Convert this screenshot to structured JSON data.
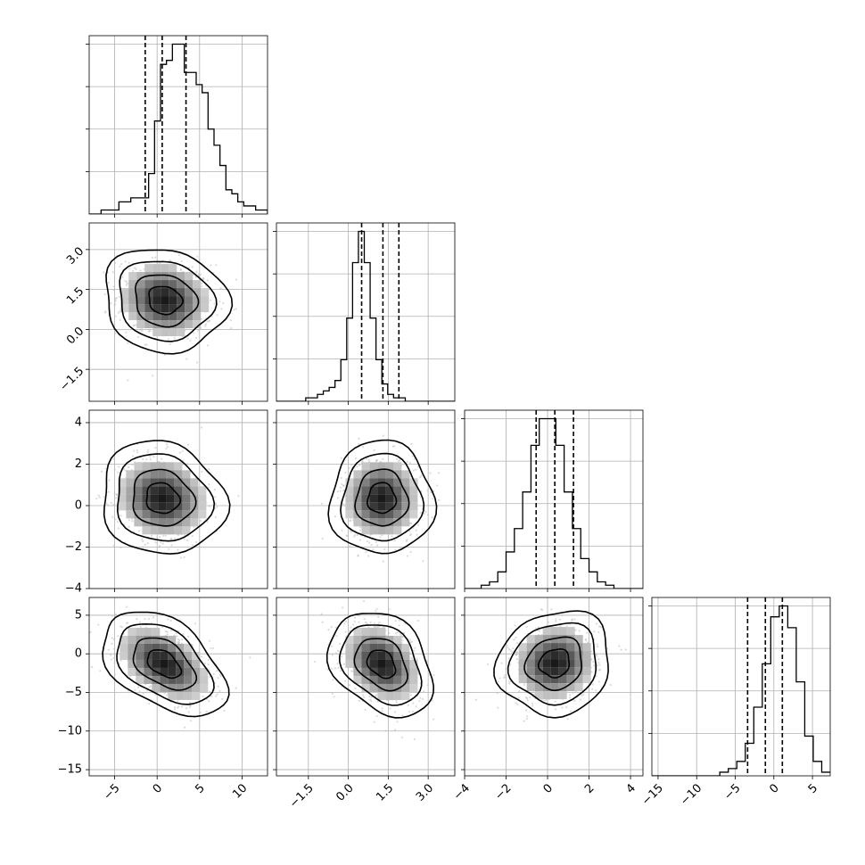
{
  "chart_data": {
    "type": "corner",
    "grid": true,
    "variables": [
      {
        "range": [
          -8,
          13
        ],
        "ticks": [
          -5,
          0,
          5,
          10
        ],
        "tick_labels": [
          "−5",
          "0",
          "5",
          "10"
        ],
        "quantiles": [
          -1.4,
          0.6,
          3.4
        ],
        "hist_edges_start": -8,
        "hist_bin_width": 0.7,
        "hist_counts": [
          0,
          0,
          1,
          1,
          1,
          3,
          3,
          4,
          4,
          4,
          10,
          23,
          37,
          38,
          42,
          42,
          35,
          35,
          32,
          30,
          21,
          17,
          12,
          6,
          5,
          3,
          2,
          2,
          1,
          1,
          0
        ],
        "hist_max": 42
      },
      {
        "range": [
          -2.7,
          4.0
        ],
        "ticks": [
          -1.5,
          0.0,
          1.5,
          3.0
        ],
        "tick_labels": [
          "−1.5",
          "0.0",
          "1.5",
          "3.0"
        ],
        "quantiles": [
          0.5,
          1.3,
          1.9
        ],
        "hist_edges_start": -2.7,
        "hist_bin_width": 0.22,
        "hist_counts": [
          0,
          0,
          0,
          0,
          0,
          1,
          1,
          2,
          3,
          4,
          6,
          12,
          24,
          40,
          49,
          40,
          24,
          12,
          5,
          2,
          1,
          1,
          0,
          0,
          0,
          0,
          0,
          0,
          0,
          0,
          0
        ],
        "hist_max": 49
      },
      {
        "range": [
          -4,
          4.6
        ],
        "ticks": [
          -4,
          -2,
          0,
          2,
          4
        ],
        "tick_labels": [
          "−4",
          "−2",
          "0",
          "2",
          "4"
        ],
        "quantiles": [
          -0.55,
          0.35,
          1.25
        ],
        "hist_edges_start": -4.0,
        "hist_bin_width": 0.4,
        "hist_counts": [
          0,
          0,
          1,
          2,
          5,
          11,
          18,
          29,
          43,
          51,
          51,
          43,
          29,
          18,
          9,
          5,
          2,
          1,
          0,
          0,
          0,
          0
        ],
        "hist_max": 51
      },
      {
        "range": [
          -15.8,
          7.3
        ],
        "ticks": [
          -15,
          -10,
          -5,
          0,
          5
        ],
        "tick_labels": [
          "−15",
          "−10",
          "−5",
          "0",
          "5"
        ],
        "quantiles": [
          -3.4,
          -1.1,
          1.1
        ],
        "hist_edges_start": -15.8,
        "hist_bin_width": 1.1,
        "hist_counts": [
          0,
          0,
          0,
          0,
          0,
          0,
          0,
          0,
          1,
          2,
          4,
          9,
          19,
          31,
          44,
          47,
          41,
          26,
          11,
          4,
          1,
          1
        ],
        "hist_max": 47
      }
    ],
    "pairs": [
      {
        "row": 1,
        "col": 0,
        "center": [
          0.9,
          1.1
        ],
        "spread": [
          2.8,
          0.75
        ],
        "rho": -0.1
      },
      {
        "row": 2,
        "col": 0,
        "center": [
          0.6,
          0.35
        ],
        "spread": [
          2.8,
          1.05
        ],
        "rho": -0.1
      },
      {
        "row": 2,
        "col": 1,
        "center": [
          1.25,
          0.35
        ],
        "spread": [
          0.75,
          1.05
        ],
        "rho": 0.0
      },
      {
        "row": 3,
        "col": 0,
        "center": [
          0.8,
          -1.3
        ],
        "spread": [
          2.8,
          2.6
        ],
        "rho": -0.45
      },
      {
        "row": 3,
        "col": 1,
        "center": [
          1.25,
          -1.3
        ],
        "spread": [
          0.75,
          2.6
        ],
        "rho": -0.3
      },
      {
        "row": 3,
        "col": 2,
        "center": [
          0.35,
          -1.2
        ],
        "spread": [
          1.05,
          2.6
        ],
        "rho": 0.1
      }
    ]
  }
}
